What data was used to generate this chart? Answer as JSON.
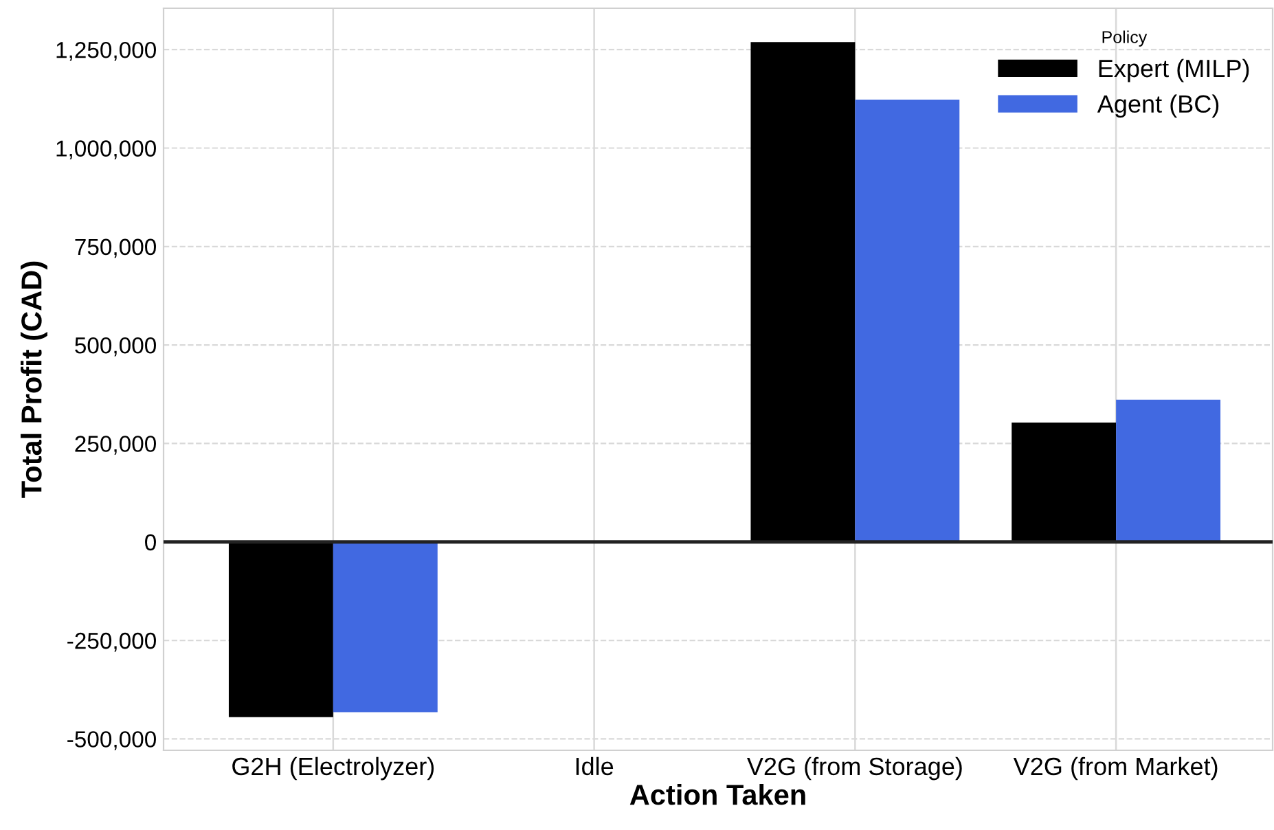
{
  "chart_data": {
    "type": "bar",
    "xlabel": "Action Taken",
    "ylabel": "Total Profit (CAD)",
    "legend_title": "Policy",
    "categories": [
      "G2H (Electrolyzer)",
      "Idle",
      "V2G (from Storage)",
      "V2G (from Market)"
    ],
    "series": [
      {
        "name": "Expert (MILP)",
        "color": "#000000",
        "values": [
          -445000,
          0,
          1269000,
          303000
        ]
      },
      {
        "name": "Agent (BC)",
        "color": "#4169e1",
        "values": [
          -432000,
          0,
          1123000,
          361000
        ]
      }
    ],
    "ylim": [
      -529000,
      1355000
    ],
    "yticks": [
      {
        "value": -500000,
        "label": "-500,000"
      },
      {
        "value": -250000,
        "label": "-250,000"
      },
      0,
      {
        "value": 250000,
        "label": "250,000"
      },
      {
        "value": 500000,
        "label": "500,000"
      },
      {
        "value": 750000,
        "label": "750,000"
      },
      {
        "value": 1000000,
        "label": "1,000,000"
      },
      {
        "value": 1250000,
        "label": "1,250,000"
      }
    ],
    "ref_lines": [
      {
        "axis": "y",
        "value": 0,
        "color": "#222222"
      }
    ],
    "grid": true,
    "legend": "top right"
  }
}
